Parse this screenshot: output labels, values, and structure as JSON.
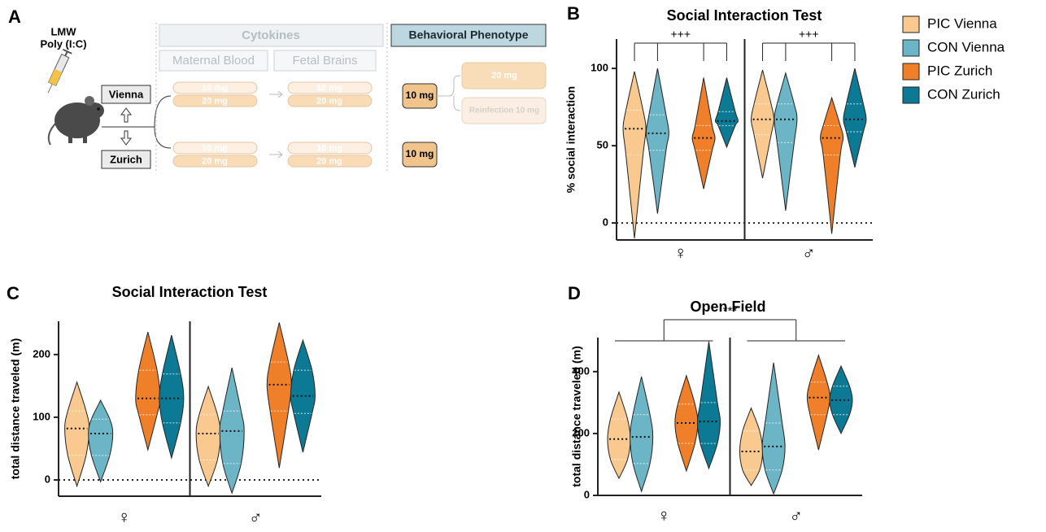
{
  "diagram": {
    "label": "A",
    "injection": [
      "LMW",
      "Poly (I:C)"
    ],
    "sites": [
      "Vienna",
      "Zurich"
    ],
    "cytokines": {
      "title": "Cytokines",
      "columns": [
        "Maternal Blood",
        "Fetal Brains"
      ],
      "doses": [
        "10 mg",
        "20 mg"
      ]
    },
    "behavior": {
      "title": "Behavioral Phenotype",
      "vienna_dose": "10 mg",
      "vienna_follow": [
        "20 mg",
        "Reinfection 10 mg"
      ],
      "zurich_dose": "10 mg"
    }
  },
  "chart_data": [
    {
      "type": "violin",
      "panel": "B",
      "title": "Social Interaction Test",
      "y_label": "% social interaction",
      "categories": [
        "♀",
        "♂"
      ],
      "ylim": [
        -11,
        119
      ],
      "yticks": [
        0,
        50,
        100
      ],
      "reference_line": 0,
      "legend": "outside-right",
      "annotations": [
        "+++",
        "+++"
      ],
      "series": [
        {
          "name": "PIC Vienna",
          "color": "#f9c98f",
          "min": [
            -10,
            29
          ],
          "q1": [
            44,
            57
          ],
          "median": [
            61,
            67
          ],
          "q3": [
            73,
            77
          ],
          "max": [
            98,
            99
          ]
        },
        {
          "name": "CON Vienna",
          "color": "#6bb5c7",
          "min": [
            6,
            8
          ],
          "q1": [
            47,
            52
          ],
          "median": [
            58,
            67
          ],
          "q3": [
            70,
            77
          ],
          "max": [
            100,
            97
          ]
        },
        {
          "name": "PIC Zurich",
          "color": "#f07f2a",
          "min": [
            22,
            -7
          ],
          "q1": [
            47,
            44
          ],
          "median": [
            55,
            55
          ],
          "q3": [
            63,
            63
          ],
          "max": [
            94,
            81
          ]
        },
        {
          "name": "CON Zurich",
          "color": "#0d7a95",
          "min": [
            49,
            36
          ],
          "q1": [
            63,
            59
          ],
          "median": [
            66,
            67
          ],
          "q3": [
            72,
            77
          ],
          "max": [
            94,
            100
          ]
        }
      ]
    },
    {
      "type": "violin",
      "panel": "C",
      "title": "Social Interaction Test",
      "y_label": "total distance traveled (m)",
      "categories": [
        "♀",
        "♂"
      ],
      "ylim": [
        -26,
        253
      ],
      "yticks": [
        0,
        100,
        200
      ],
      "reference_line": 0,
      "series": [
        {
          "color": "#f9c98f",
          "min": [
            -10,
            -10
          ],
          "q1": [
            39,
            32
          ],
          "median": [
            82,
            74
          ],
          "q3": [
            110,
            104
          ],
          "max": [
            156,
            149
          ]
        },
        {
          "color": "#6bb5c7",
          "min": [
            -3,
            -21
          ],
          "q1": [
            39,
            26
          ],
          "median": [
            74,
            78
          ],
          "q3": [
            97,
            110
          ],
          "max": [
            127,
            179
          ]
        },
        {
          "color": "#f07f2a",
          "min": [
            48,
            19
          ],
          "q1": [
            104,
            110
          ],
          "median": [
            130,
            152
          ],
          "q3": [
            175,
            188
          ],
          "max": [
            236,
            251
          ]
        },
        {
          "color": "#0d7a95",
          "min": [
            35,
            44
          ],
          "q1": [
            91,
            106
          ],
          "median": [
            130,
            134
          ],
          "q3": [
            169,
            175
          ],
          "max": [
            231,
            223
          ]
        }
      ]
    },
    {
      "type": "violin",
      "panel": "D",
      "title": "Open Field",
      "y_label": "total distance traveled (m)",
      "categories": [
        "♀",
        "♂"
      ],
      "ylim": [
        0,
        510
      ],
      "yticks": [
        0,
        200,
        400
      ],
      "annotations": [
        "***"
      ],
      "series": [
        {
          "color": "#f9c98f",
          "min": [
            55,
            32
          ],
          "q1": [
            116,
            82
          ],
          "median": [
            182,
            142
          ],
          "q3": [
            247,
            208
          ],
          "max": [
            334,
            282
          ]
        },
        {
          "color": "#6bb5c7",
          "min": [
            13,
            5
          ],
          "q1": [
            103,
            82
          ],
          "median": [
            189,
            158
          ],
          "q3": [
            261,
            234
          ],
          "max": [
            384,
            429
          ]
        },
        {
          "color": "#f07f2a",
          "min": [
            79,
            147
          ],
          "q1": [
            168,
            261
          ],
          "median": [
            234,
            316
          ],
          "q3": [
            295,
            366
          ],
          "max": [
            387,
            453
          ]
        },
        {
          "color": "#0d7a95",
          "min": [
            87,
            200
          ],
          "q1": [
            168,
            261
          ],
          "median": [
            239,
            308
          ],
          "q3": [
            300,
            353
          ],
          "max": [
            497,
            418
          ]
        }
      ]
    }
  ]
}
